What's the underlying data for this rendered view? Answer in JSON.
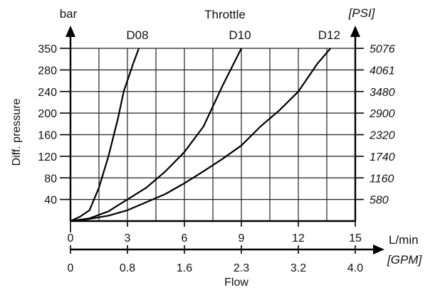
{
  "chart_data": {
    "type": "line",
    "title": "Throttle",
    "xlabel": "Flow",
    "ylabel": "Diff. pressure",
    "x_unit": "L/min",
    "x_unit_secondary": "[GPM]",
    "y_unit": "bar",
    "y_unit_secondary": "[PSI]",
    "xlim": [
      0,
      15
    ],
    "x_ticks": [
      0,
      3,
      6,
      9,
      12,
      15
    ],
    "x_ticks_secondary": [
      "0",
      "0.8",
      "1.6",
      "2.3",
      "3.2",
      "4.0"
    ],
    "y_ticks": [
      40,
      80,
      120,
      160,
      200,
      240,
      280,
      350
    ],
    "y_ticks_secondary": [
      "580",
      "1160",
      "1740",
      "2320",
      "2900",
      "3480",
      "4061",
      "5076"
    ],
    "grid": true,
    "series": [
      {
        "name": "D08",
        "x": [
          0,
          0.5,
          1,
          1.5,
          2,
          2.5,
          2.8,
          3.3,
          3.6
        ],
        "y": [
          0,
          8,
          20,
          62,
          120,
          190,
          240,
          300,
          350
        ]
      },
      {
        "name": "D10",
        "x": [
          0,
          1,
          2,
          3,
          4,
          5,
          6,
          7,
          8,
          9
        ],
        "y": [
          0,
          5,
          18,
          40,
          62,
          92,
          128,
          175,
          250,
          350
        ]
      },
      {
        "name": "D12",
        "x": [
          0,
          1,
          2,
          3,
          4,
          5,
          6,
          7,
          8,
          9,
          10,
          11,
          12,
          13,
          13.7
        ],
        "y": [
          0,
          4,
          10,
          20,
          35,
          50,
          70,
          92,
          115,
          140,
          175,
          205,
          240,
          300,
          350
        ]
      }
    ]
  }
}
